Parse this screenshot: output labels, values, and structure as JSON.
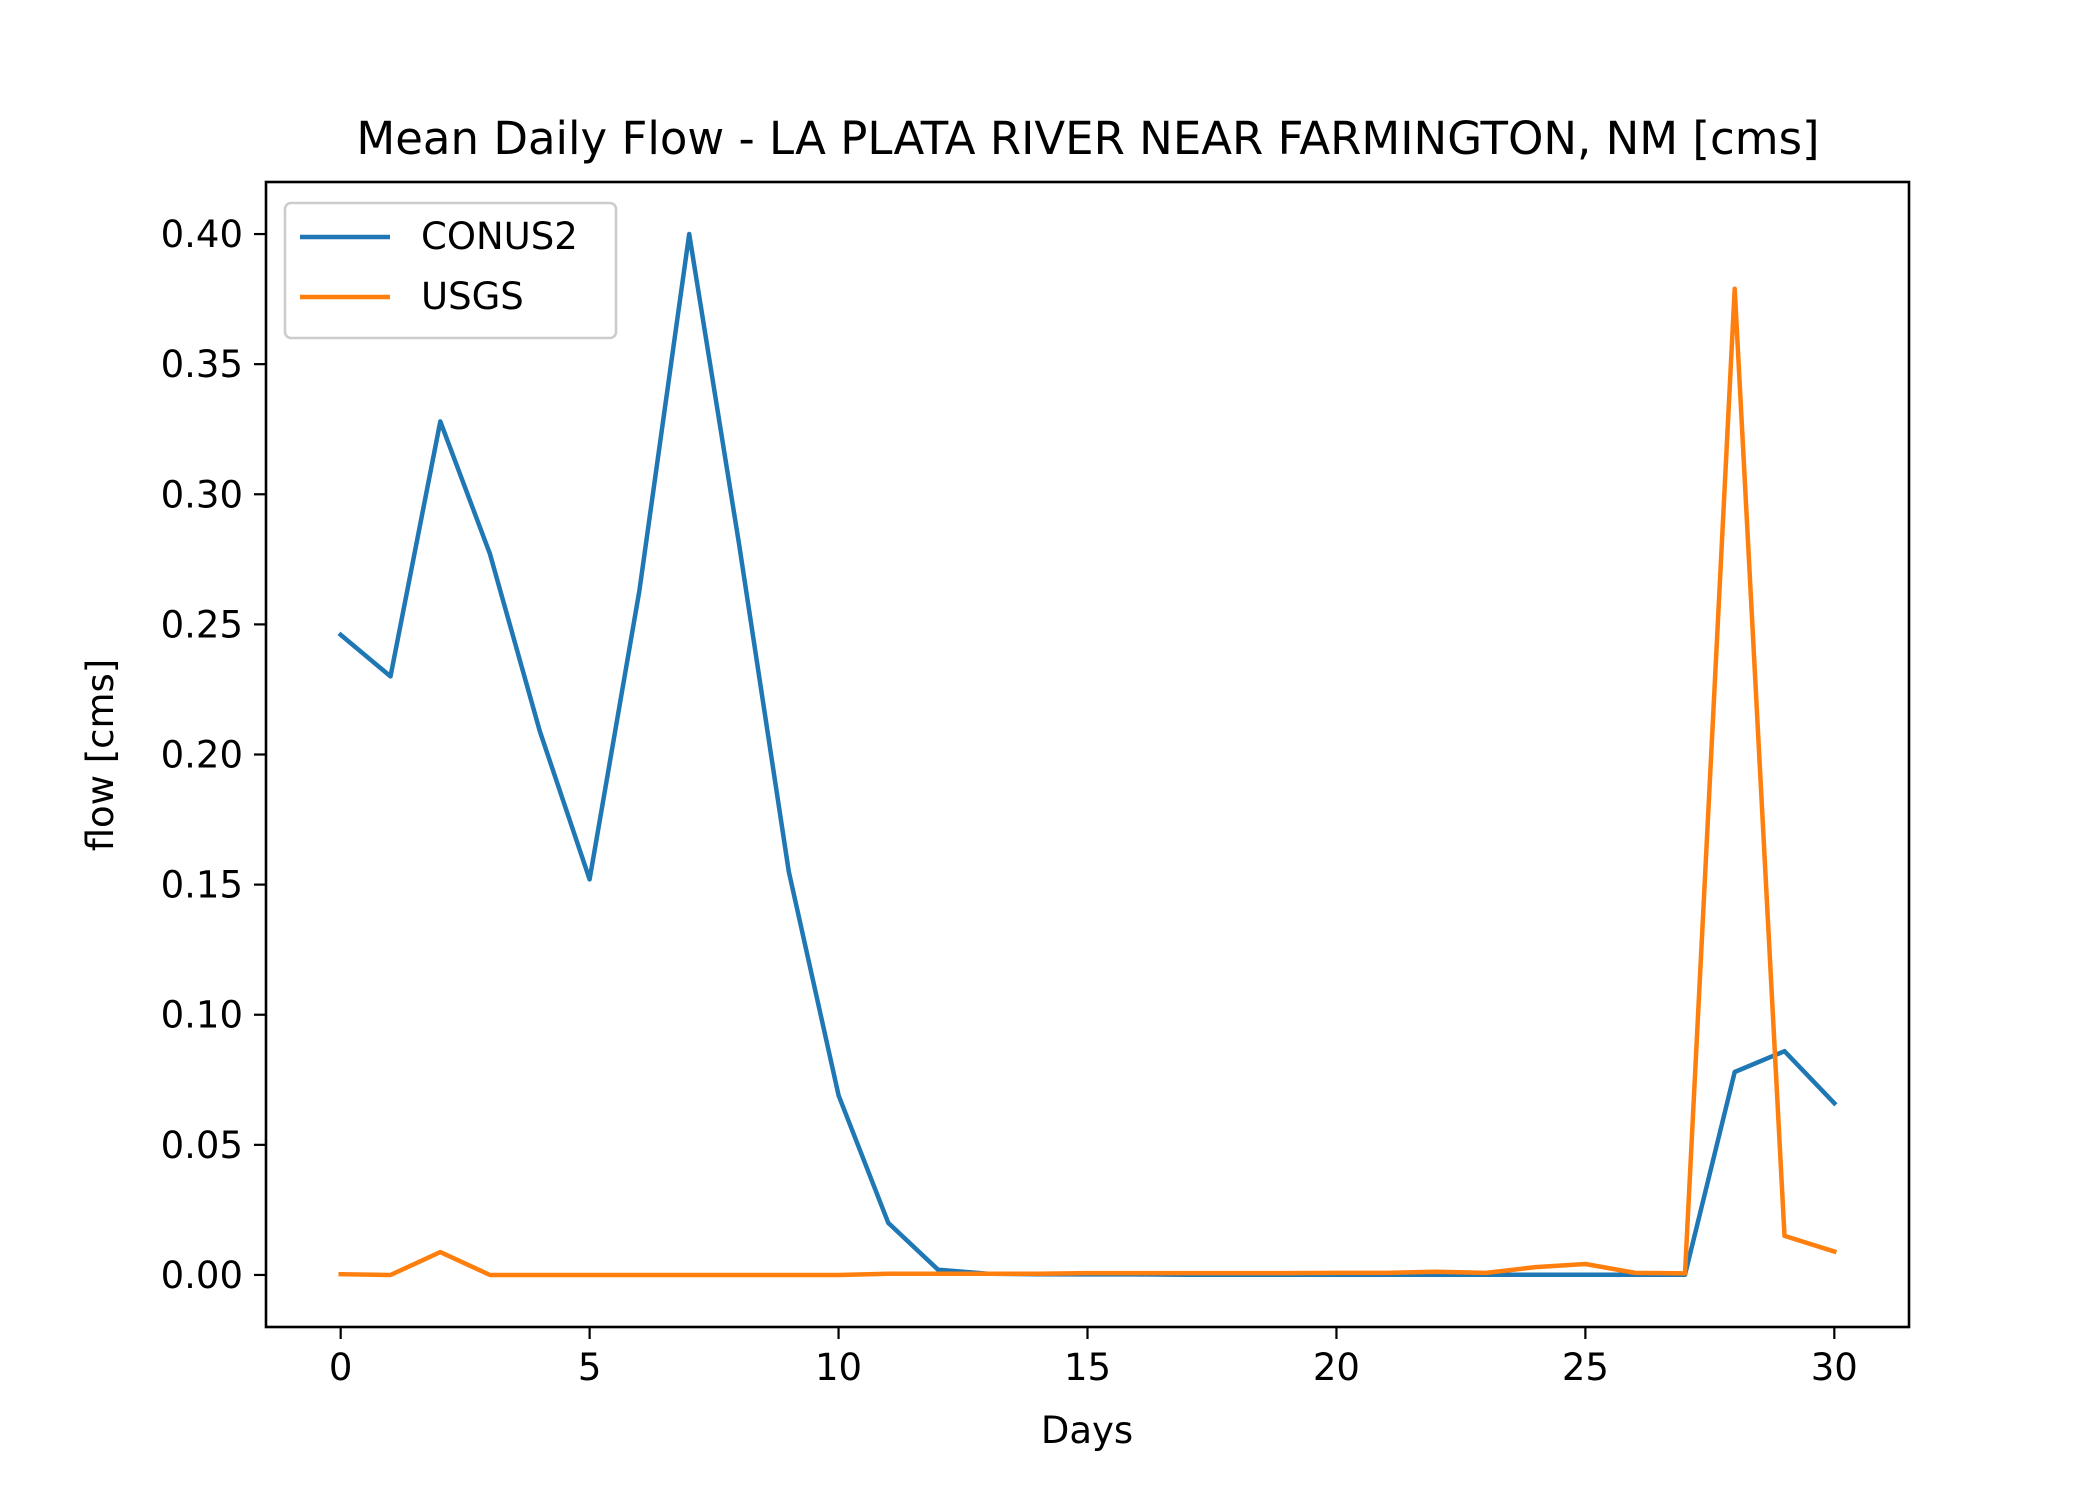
{
  "chart_data": {
    "type": "line",
    "title": "Mean Daily Flow - LA PLATA RIVER NEAR FARMINGTON, NM [cms]",
    "xlabel": "Days",
    "ylabel": "flow [cms]",
    "xlim": [
      -1.5,
      31.5
    ],
    "ylim": [
      -0.02,
      0.42
    ],
    "xticks": [
      0,
      5,
      10,
      15,
      20,
      25,
      30
    ],
    "xtick_labels": [
      "0",
      "5",
      "10",
      "15",
      "20",
      "25",
      "30"
    ],
    "yticks": [
      0.0,
      0.05,
      0.1,
      0.15,
      0.2,
      0.25,
      0.3,
      0.35,
      0.4
    ],
    "ytick_labels": [
      "0.00",
      "0.05",
      "0.10",
      "0.15",
      "0.20",
      "0.25",
      "0.30",
      "0.35",
      "0.40"
    ],
    "grid": false,
    "legend_position": "upper-left",
    "x": [
      0,
      1,
      2,
      3,
      4,
      5,
      6,
      7,
      8,
      9,
      10,
      11,
      12,
      13,
      14,
      15,
      16,
      17,
      18,
      19,
      20,
      21,
      22,
      23,
      24,
      25,
      26,
      27,
      28,
      29,
      30
    ],
    "series": [
      {
        "name": "CONUS2",
        "color": "#1f77b4",
        "values": [
          0.246,
          0.23,
          0.328,
          0.277,
          0.209,
          0.152,
          0.263,
          0.4,
          0.281,
          0.155,
          0.069,
          0.02,
          0.002,
          0.0005,
          0.0003,
          0.0002,
          0.0002,
          0.0001,
          0.0001,
          0.0001,
          0.0001,
          0.0001,
          0.0001,
          0.0001,
          0.0001,
          0.0001,
          0.0001,
          0.0001,
          0.078,
          0.086,
          0.066
        ]
      },
      {
        "name": "USGS",
        "color": "#ff7f0e",
        "values": [
          0.0003,
          0.0,
          0.0088,
          0.0,
          0.0,
          0.0,
          0.0,
          0.0,
          0.0,
          0.0,
          0.0,
          0.0005,
          0.0005,
          0.0005,
          0.0005,
          0.0007,
          0.0007,
          0.0007,
          0.0007,
          0.0007,
          0.0008,
          0.0008,
          0.0012,
          0.0008,
          0.003,
          0.0042,
          0.0008,
          0.0006,
          0.379,
          0.015,
          0.009
        ]
      }
    ]
  }
}
